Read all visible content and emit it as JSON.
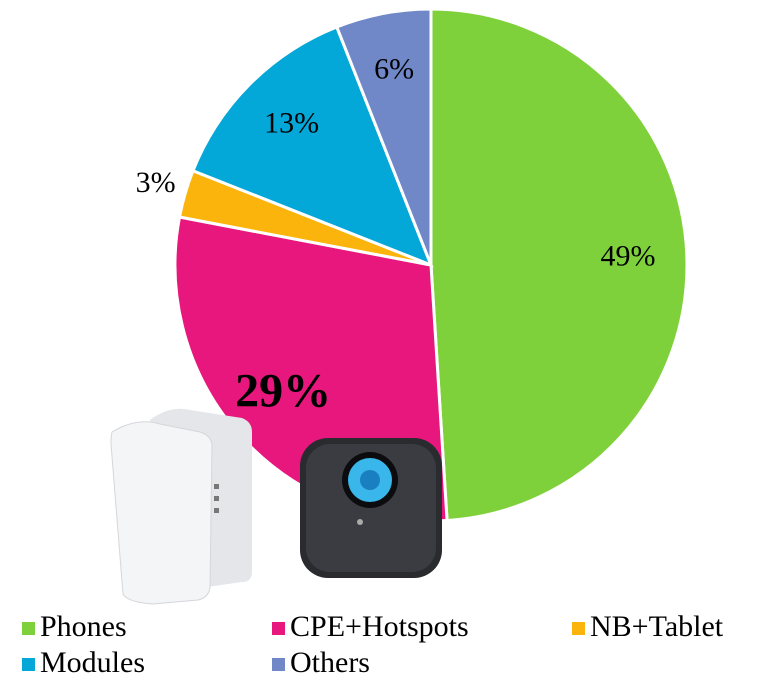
{
  "chart_data": {
    "type": "pie",
    "categories": [
      "Phones",
      "CPE+Hotspots",
      "NB+Tablet",
      "Modules",
      "Others"
    ],
    "values": [
      49,
      29,
      3,
      13,
      6
    ],
    "value_labels": [
      "49%",
      "29%",
      "3%",
      "13%",
      "6%"
    ],
    "colors": [
      "#7fd13b",
      "#e8177d",
      "#fbb40b",
      "#04a8d8",
      "#7088c8"
    ],
    "legend": "bottom"
  }
}
